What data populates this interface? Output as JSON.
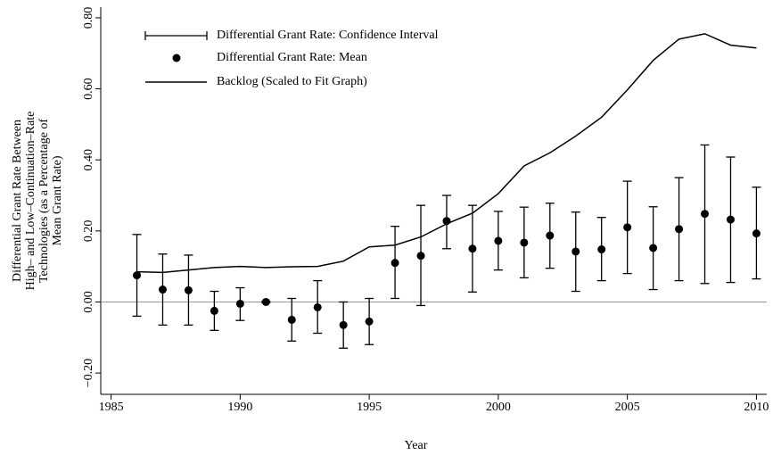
{
  "chart_data": {
    "type": "errorbar-line",
    "xlabel": "Year",
    "ylabel": [
      "Differential Grant Rate Between",
      "High– and Low–Continuation–Rate",
      "Technologies (as a Percentage of",
      "Mean Grant Rate)"
    ],
    "x": [
      1986,
      1987,
      1988,
      1989,
      1990,
      1991,
      1992,
      1993,
      1994,
      1995,
      1996,
      1997,
      1998,
      1999,
      2000,
      2001,
      2002,
      2003,
      2004,
      2005,
      2006,
      2007,
      2008,
      2009,
      2010
    ],
    "series": [
      {
        "name": "Differential Grant Rate: Confidence Interval",
        "color": "#000000",
        "lower": [
          -0.04,
          -0.065,
          -0.065,
          -0.08,
          -0.052,
          -0.002,
          -0.11,
          -0.088,
          -0.13,
          -0.12,
          0.01,
          -0.01,
          0.15,
          0.028,
          0.09,
          0.068,
          0.095,
          0.03,
          0.06,
          0.08,
          0.035,
          0.06,
          0.052,
          0.055,
          0.065
        ],
        "upper": [
          0.19,
          0.135,
          0.132,
          0.03,
          0.04,
          0.002,
          0.01,
          0.06,
          0.0,
          0.01,
          0.213,
          0.272,
          0.3,
          0.272,
          0.255,
          0.267,
          0.278,
          0.253,
          0.238,
          0.34,
          0.268,
          0.35,
          0.442,
          0.408,
          0.323
        ]
      },
      {
        "name": "Differential Grant Rate: Mean",
        "color": "#000000",
        "values": [
          0.075,
          0.035,
          0.033,
          -0.025,
          -0.005,
          0.0,
          -0.05,
          -0.015,
          -0.065,
          -0.055,
          0.11,
          0.13,
          0.228,
          0.15,
          0.172,
          0.167,
          0.187,
          0.142,
          0.148,
          0.21,
          0.152,
          0.205,
          0.248,
          0.232,
          0.193
        ]
      },
      {
        "name": "Backlog (Scaled to Fit Graph)",
        "color": "#000000",
        "values": [
          0.085,
          0.083,
          0.09,
          0.097,
          0.1,
          0.097,
          0.099,
          0.1,
          0.115,
          0.155,
          0.16,
          0.183,
          0.22,
          0.25,
          0.305,
          0.383,
          0.42,
          0.467,
          0.52,
          0.597,
          0.68,
          0.74,
          0.755,
          0.723,
          0.715
        ]
      }
    ],
    "xlim": [
      1984.6,
      2010.4
    ],
    "xticks": [
      1985,
      1990,
      1995,
      2000,
      2005,
      2010
    ],
    "ylim": [
      -0.26,
      0.83
    ],
    "yticks": [
      {
        "value": -0.2,
        "label": "−0.20"
      },
      {
        "value": 0,
        "label": "0.00"
      },
      {
        "value": 0.2,
        "label": "0.20"
      },
      {
        "value": 0.4,
        "label": "0.40"
      },
      {
        "value": 0.6,
        "label": "0.60"
      },
      {
        "value": 0.8,
        "label": "0.80"
      }
    ],
    "hline": 0,
    "hline_color": "#999999",
    "legend": "upper left"
  }
}
